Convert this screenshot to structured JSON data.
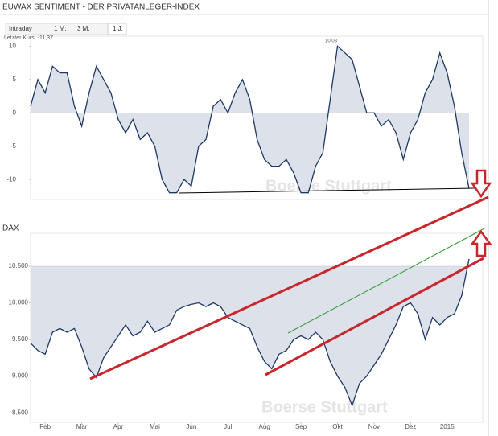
{
  "header": {
    "title": "EUWAX SENTIMENT - DER PRIVATANLEGER-INDEX",
    "tabs": [
      "Intraday",
      "1 M.",
      "3 M.",
      "1 J."
    ]
  },
  "chart_data": [
    {
      "type": "area",
      "area_fill": "zero",
      "color": "#1f3864",
      "fill_color": "#dde2ea",
      "annotations": [
        "Letzter Kurs: -11,37",
        "10,08"
      ],
      "watermark": "Boerse Stuttgart",
      "values": [
        1,
        5,
        3,
        7,
        6,
        6,
        1,
        -2,
        3,
        7,
        5,
        3,
        -1,
        -3,
        -1,
        -4,
        -3,
        -5,
        -10,
        -12,
        -12,
        -10,
        -11,
        -5,
        -4,
        1,
        2,
        0,
        3,
        5,
        2,
        -4,
        -7,
        -8,
        -8,
        -7,
        -9,
        -12,
        -12,
        -8,
        -6,
        2,
        10,
        9,
        8,
        4,
        0,
        0,
        -2,
        -1,
        -3,
        -7,
        -3,
        -1,
        3,
        5,
        9,
        6,
        1,
        -6,
        -11.37
      ],
      "ylim": [
        -13,
        11.5
      ],
      "yticks": [
        10,
        5,
        0,
        -5,
        -10
      ]
    },
    {
      "type": "area",
      "area_fill": "top",
      "title": "DAX",
      "color": "#1f3864",
      "fill_color": "#dde2ea",
      "watermark": "Boerse Stuttgart",
      "categories": [
        null,
        null,
        "Feb",
        null,
        null,
        null,
        null,
        "Mär",
        null,
        null,
        null,
        null,
        "Apr",
        null,
        null,
        null,
        null,
        "Mai",
        null,
        null,
        null,
        null,
        "Jun",
        null,
        null,
        null,
        null,
        "Jul",
        null,
        null,
        null,
        null,
        "Aug",
        null,
        null,
        null,
        null,
        "Sep",
        null,
        null,
        null,
        null,
        "Okt",
        null,
        null,
        null,
        null,
        "Nov",
        null,
        null,
        null,
        null,
        "Dez",
        null,
        null,
        null,
        null,
        "2015",
        null,
        null,
        null
      ],
      "values": [
        9450,
        9350,
        9300,
        9600,
        9650,
        9600,
        9650,
        9400,
        9100,
        8980,
        9250,
        9400,
        9550,
        9700,
        9550,
        9600,
        9750,
        9600,
        9650,
        9700,
        9900,
        9950,
        9980,
        10000,
        9950,
        10000,
        9950,
        9800,
        9750,
        9700,
        9650,
        9400,
        9200,
        9100,
        9300,
        9350,
        9500,
        9550,
        9500,
        9600,
        9500,
        9200,
        9000,
        8850,
        8600,
        8900,
        9000,
        9150,
        9300,
        9500,
        9700,
        9950,
        10000,
        9850,
        9500,
        9800,
        9700,
        9800,
        9850,
        10100,
        10600
      ],
      "ylim": [
        8370,
        10950
      ],
      "yticks": [
        {
          "value": 10500,
          "label": "10.500"
        },
        {
          "value": 10000,
          "label": "10.000"
        },
        {
          "value": 9500,
          "label": "9.500"
        },
        {
          "value": 9000,
          "label": "9.000"
        },
        {
          "value": 8500,
          "label": "8.500"
        }
      ]
    }
  ]
}
